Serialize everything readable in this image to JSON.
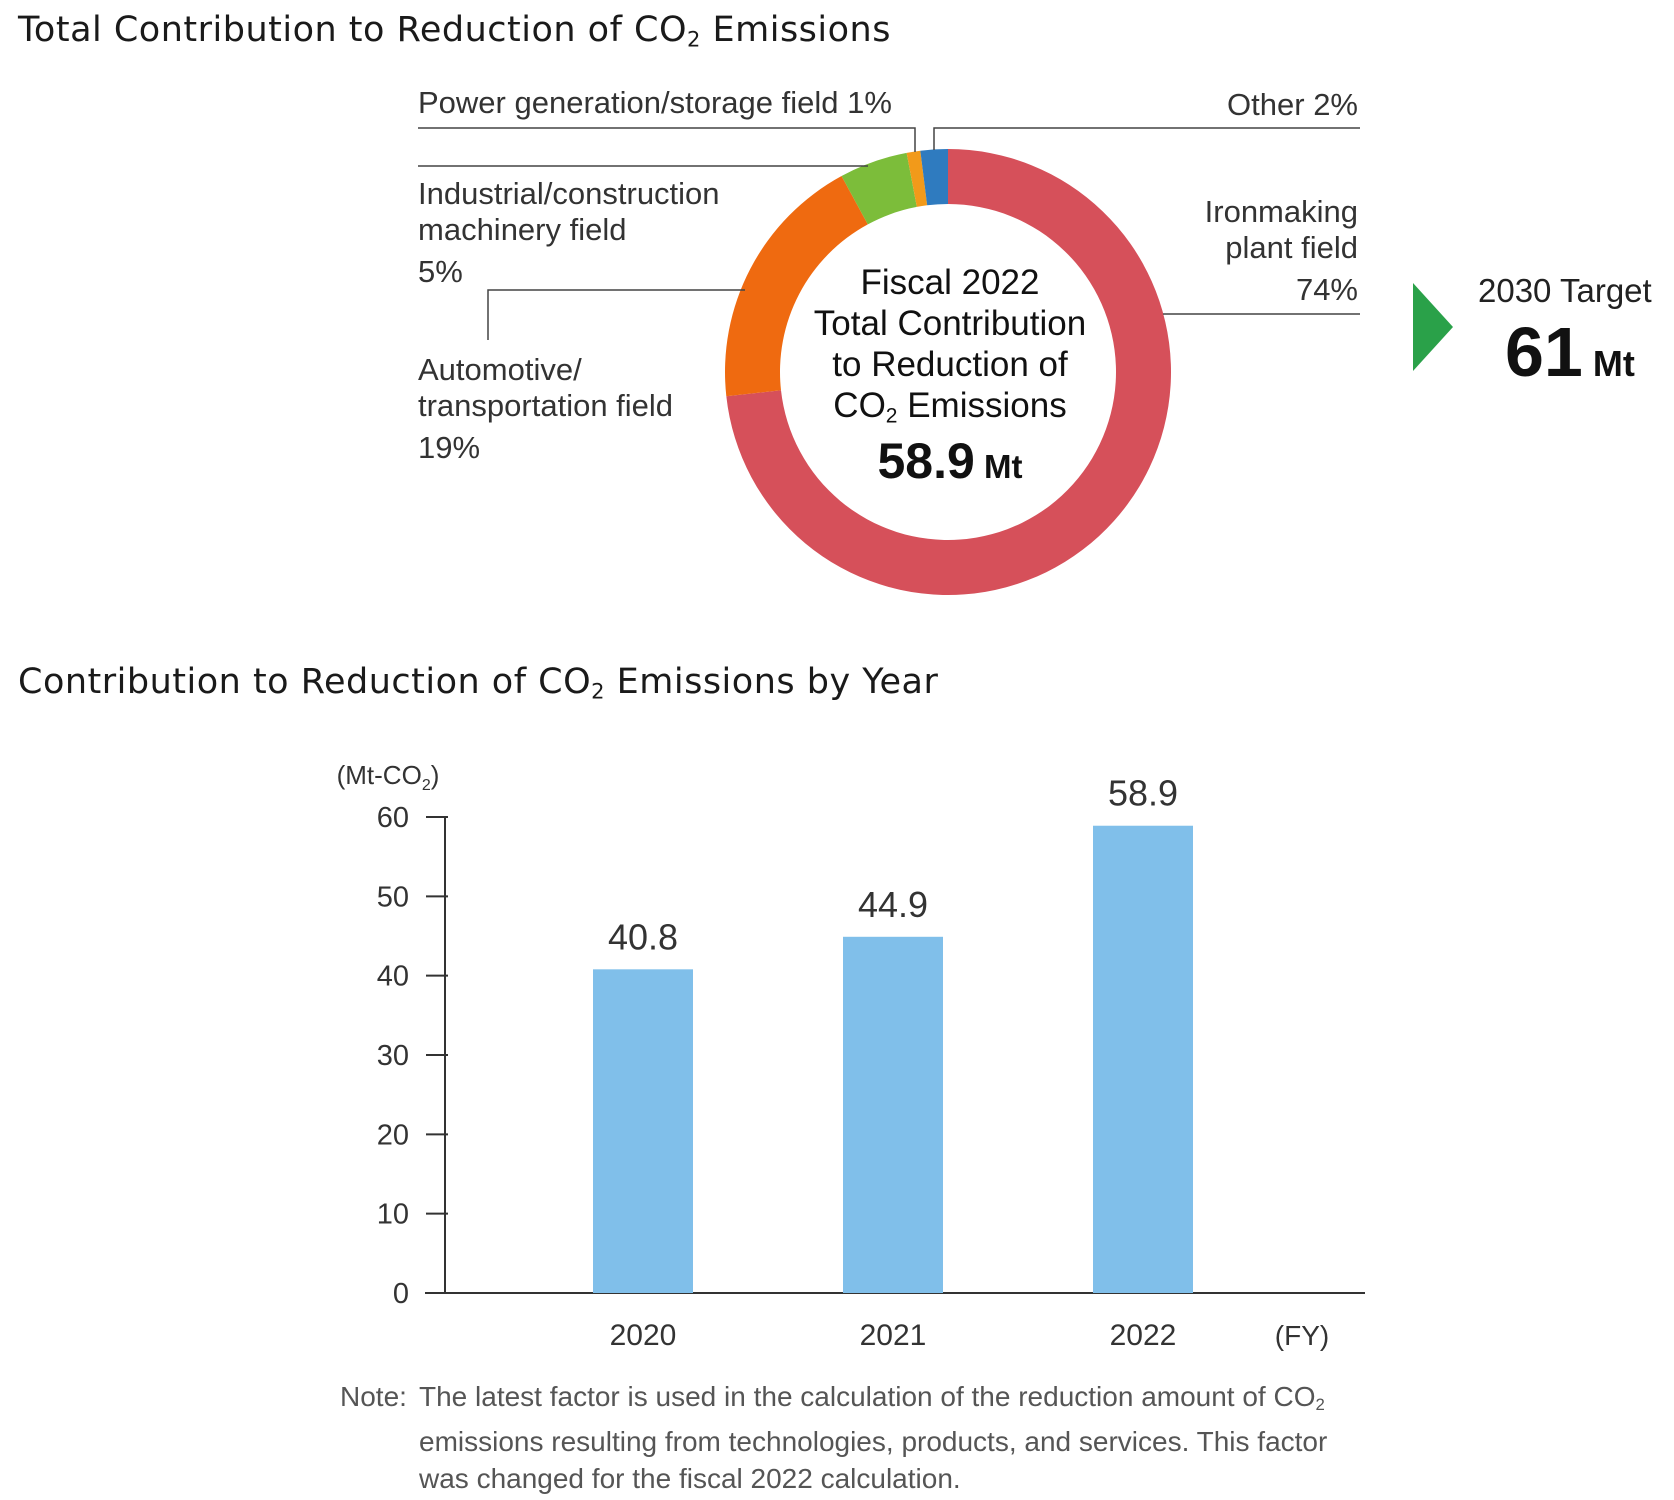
{
  "donut": {
    "title": "Total Contribution to Reduction of CO",
    "title_sub": "2",
    "title_tail": " Emissions",
    "center": {
      "line1": "Fiscal 2022",
      "line2": "Total Contribution",
      "line3": "to Reduction of",
      "line4_a": "CO",
      "line4_sub": "2",
      "line4_b": " Emissions",
      "value": "58.9",
      "unit": " Mt"
    },
    "labels": {
      "power": "Power generation/storage field  1%",
      "other": "Other  2%",
      "industrial_1": "Industrial/construction",
      "industrial_2": "machinery field",
      "industrial_3": "5%",
      "ironmaking_1": "Ironmaking",
      "ironmaking_2": "plant field",
      "ironmaking_3": "74%",
      "auto_1": "Automotive/",
      "auto_2": "transportation field",
      "auto_3": "19%"
    },
    "target": {
      "label": "2030 Target",
      "value": "61",
      "unit": " Mt"
    }
  },
  "bar_section": {
    "title": "Contribution to Reduction of CO",
    "title_sub": "2",
    "title_tail": " Emissions by Year",
    "note_prefix": "Note:",
    "note_body_a": "The latest factor is used in the calculation of the reduction amount of CO",
    "note_body_sub": "2",
    "note_body_b": " emissions resulting from technologies, products, and services. This factor was changed for the fiscal 2022 calculation."
  },
  "colors": {
    "ironmaking": "#d6505a",
    "automotive": "#ef6a10",
    "industrial": "#7cbd3a",
    "power": "#f29a1a",
    "other": "#2f7bbf",
    "bar": "#80bfea",
    "arrow": "#2aa149"
  },
  "chart_data": [
    {
      "type": "pie",
      "title": "Total Contribution to Reduction of CO2 Emissions",
      "total": 58.9,
      "unit": "Mt",
      "slices": [
        {
          "name": "Ironmaking plant field",
          "value": 74
        },
        {
          "name": "Automotive/transportation field",
          "value": 19
        },
        {
          "name": "Industrial/construction machinery field",
          "value": 5
        },
        {
          "name": "Power generation/storage field",
          "value": 1
        },
        {
          "name": "Other",
          "value": 2
        }
      ]
    },
    {
      "type": "bar",
      "title": "Contribution to Reduction of CO2 Emissions by Year",
      "categories": [
        "2020",
        "2021",
        "2022"
      ],
      "values": [
        40.8,
        44.9,
        58.9
      ],
      "value_labels": [
        "40.8",
        "44.9",
        "58.9"
      ],
      "xlabel": "(FY)",
      "ylabel": "(Mt-CO",
      "ylabel_sub": "2",
      "ylabel_tail": ")",
      "ylim": [
        0,
        60
      ],
      "yticks": [
        "0",
        "10",
        "20",
        "30",
        "40",
        "50",
        "60"
      ]
    }
  ]
}
